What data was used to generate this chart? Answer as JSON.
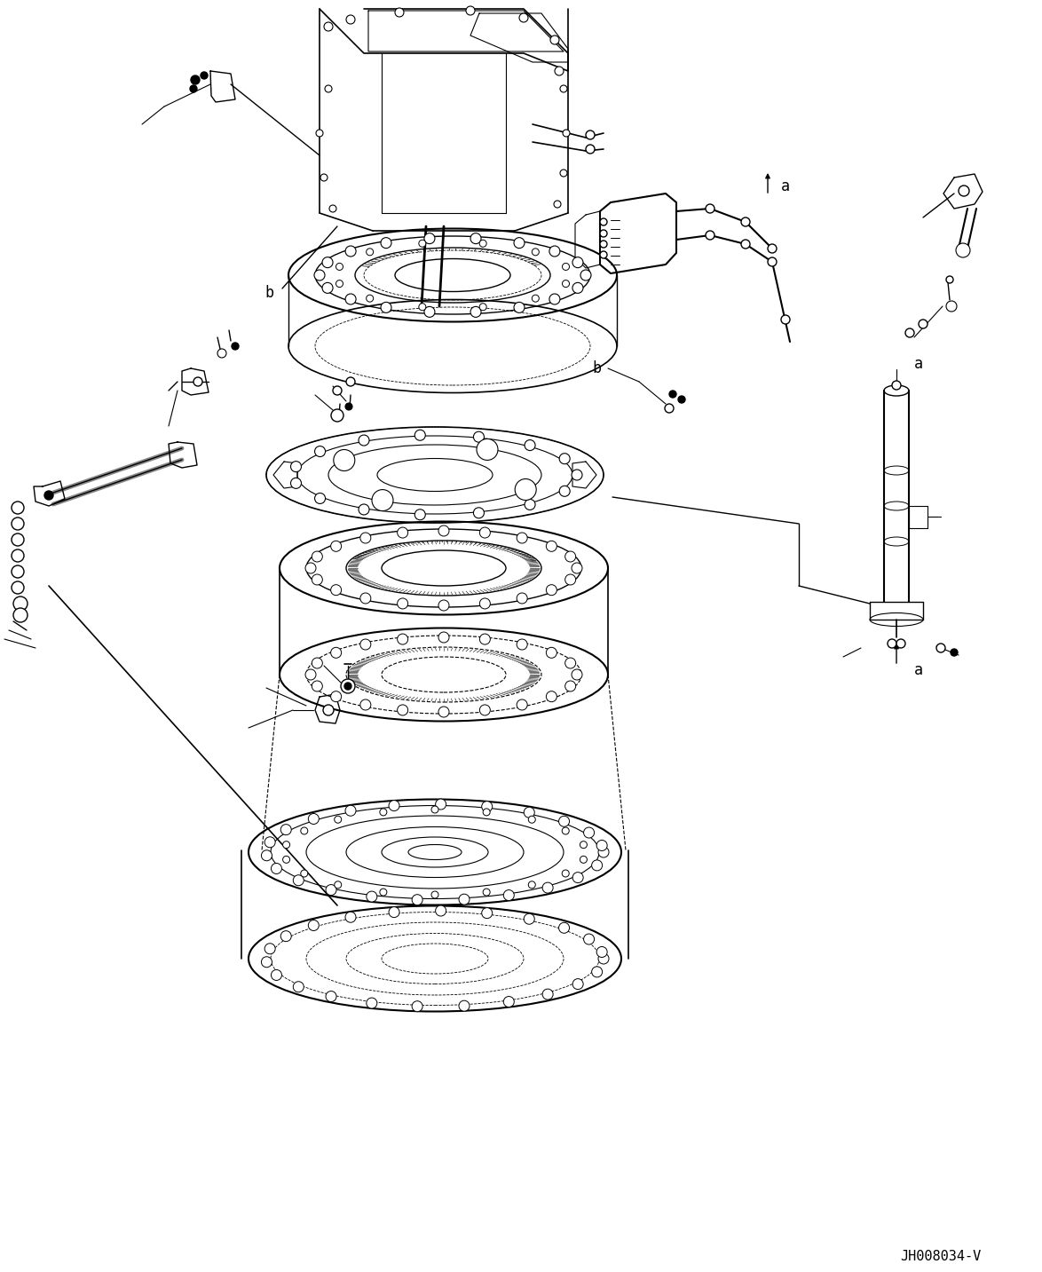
{
  "background_color": "#ffffff",
  "line_color": "#000000",
  "fig_width": 11.74,
  "fig_height": 14.33,
  "dpi": 100,
  "watermark": "JH008034-V",
  "label_a": "a",
  "label_b": "b"
}
